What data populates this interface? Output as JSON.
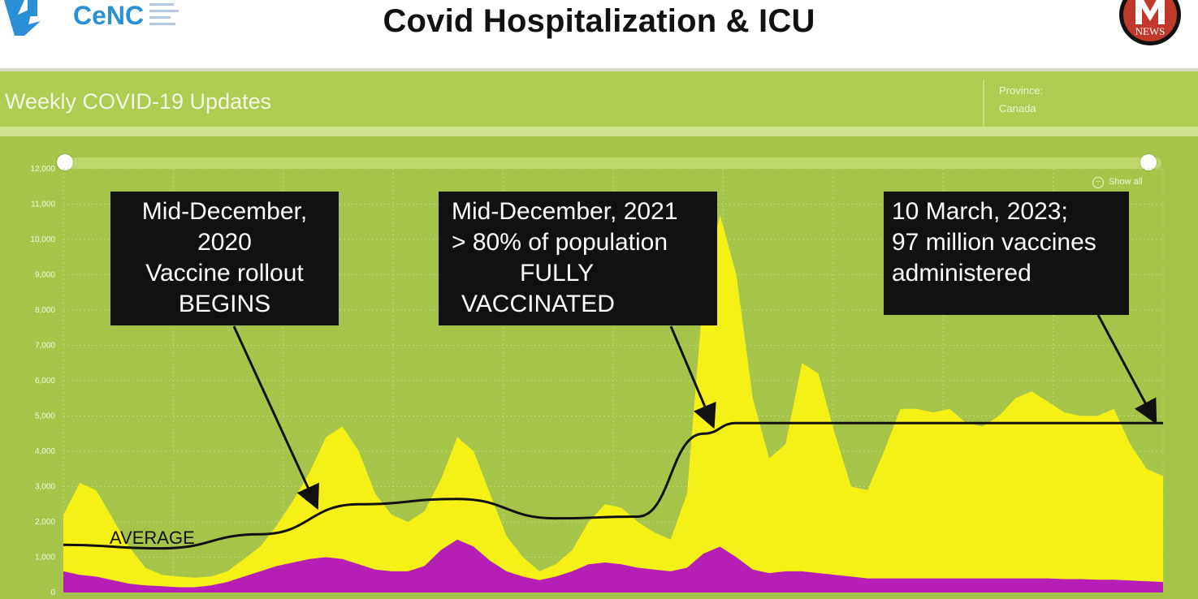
{
  "header": {
    "title": "Covid Hospitalization & ICU",
    "logo_left_text": "CeNC",
    "logo_right_text": "NEWS"
  },
  "dashboard": {
    "title": "Weekly COVID-19 Updates",
    "province_label": "Province:",
    "province_value": "Canada",
    "show_all_label": "Show all"
  },
  "callouts": {
    "c1": [
      "Mid-December,",
      "2020",
      "Vaccine rollout",
      "BEGINS"
    ],
    "c2": [
      "Mid-December, 2021",
      "> 80% of population",
      "FULLY",
      "VACCINATED"
    ],
    "c3": [
      "10 March, 2023;",
      "97 million vaccines",
      "administered"
    ]
  },
  "colors": {
    "background": "#a7c44a",
    "hospitalization": "#f5f016",
    "icu": "#b51fb5",
    "average_line": "#111111",
    "gridline": "#c2d87a"
  },
  "chart_data": {
    "type": "area",
    "title": "",
    "xlabel": "",
    "ylabel": "",
    "ylim": [
      0,
      12000
    ],
    "yticks": [
      "0",
      "1,000",
      "2,000",
      "3,000",
      "4,000",
      "5,000",
      "6,000",
      "7,000",
      "8,000",
      "9,000",
      "10,000",
      "11,000",
      "12,000"
    ],
    "yticks_values": [
      0,
      1000,
      2000,
      3000,
      4000,
      5000,
      6000,
      7000,
      8000,
      9000,
      10000,
      11000,
      12000
    ],
    "grid": true,
    "x": [
      0,
      1,
      2,
      3,
      4,
      5,
      6,
      7,
      8,
      9,
      10,
      11,
      12,
      13,
      14,
      15,
      16,
      17,
      18,
      19,
      20,
      21,
      22,
      23,
      24,
      25,
      26,
      27,
      28,
      29,
      30,
      31,
      32,
      33,
      34,
      35,
      36,
      37,
      38,
      39,
      40,
      41,
      42,
      43,
      44,
      45,
      46,
      47,
      48,
      49,
      50,
      51,
      52,
      53,
      54,
      55,
      56,
      57,
      58,
      59,
      60,
      61,
      62,
      63,
      64,
      65,
      66,
      67
    ],
    "series": [
      {
        "name": "",
        "values": [
          2200,
          3100,
          2900,
          2100,
          1300,
          700,
          500,
          450,
          420,
          450,
          600,
          950,
          1300,
          1900,
          2600,
          3400,
          4400,
          4700,
          4000,
          2800,
          2200,
          2000,
          2300,
          3200,
          4400,
          4000,
          2800,
          1600,
          1000,
          600,
          800,
          1200,
          2000,
          2500,
          2400,
          2000,
          1700,
          1500,
          2800,
          8500,
          10700,
          9000,
          5500,
          3800,
          4200,
          6500,
          6200,
          4500,
          3000,
          2900,
          4000,
          5200,
          5200,
          5100,
          5200,
          4800,
          4700,
          5000,
          5500,
          5700,
          5400,
          5100,
          5000,
          5000,
          5200,
          4200,
          3500,
          3300
        ]
      },
      {
        "name": "",
        "values": [
          600,
          500,
          450,
          350,
          250,
          200,
          180,
          150,
          150,
          200,
          300,
          450,
          600,
          750,
          850,
          950,
          1000,
          950,
          800,
          650,
          600,
          600,
          750,
          1200,
          1500,
          1300,
          900,
          600,
          450,
          350,
          450,
          600,
          800,
          850,
          800,
          700,
          650,
          600,
          700,
          1100,
          1300,
          1000,
          650,
          550,
          600,
          600,
          550,
          500,
          450,
          400,
          400,
          400,
          400,
          400,
          400,
          400,
          400,
          400,
          400,
          400,
          400,
          380,
          380,
          360,
          360,
          340,
          320,
          300
        ]
      }
    ],
    "average_line": [
      {
        "x": 0,
        "y": 1350
      },
      {
        "x": 6,
        "y": 1250
      },
      {
        "x": 12,
        "y": 1650
      },
      {
        "x": 18,
        "y": 2500
      },
      {
        "x": 24,
        "y": 2650
      },
      {
        "x": 30,
        "y": 2100
      },
      {
        "x": 35,
        "y": 2150
      },
      {
        "x": 39,
        "y": 4500
      },
      {
        "x": 41,
        "y": 4800
      },
      {
        "x": 67,
        "y": 4800
      }
    ],
    "annotations": [
      {
        "label": "AVERAGE"
      }
    ]
  }
}
